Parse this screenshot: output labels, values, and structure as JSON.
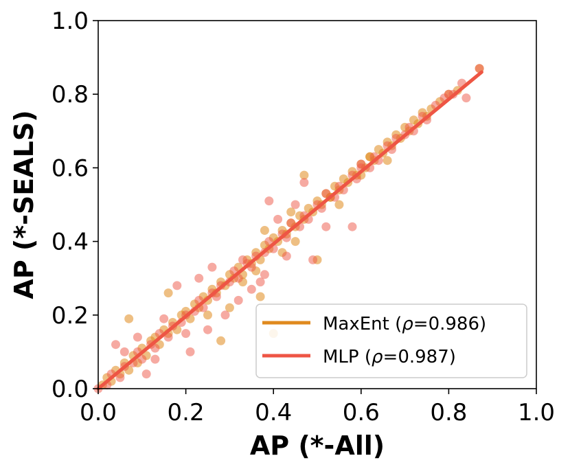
{
  "chart_data": {
    "type": "scatter",
    "xlabel": "AP (*-All)",
    "ylabel": "AP (*-SEALS)",
    "xlim": [
      0.0,
      1.0
    ],
    "ylim": [
      0.0,
      1.0
    ],
    "xticks": [
      "0.0",
      "0.2",
      "0.4",
      "0.6",
      "0.8",
      "1.0"
    ],
    "yticks": [
      "0.0",
      "0.2",
      "0.4",
      "0.6",
      "0.8",
      "1.0"
    ],
    "grid": false,
    "legend_position": "lower-right",
    "series": [
      {
        "name": "MaxEnt",
        "name_prefix": "MaxEnt (",
        "rho_symbol": "ρ",
        "rho_text": "=0.986)",
        "color": "#e08a1e",
        "fit_line": [
          [
            0.0,
            0.0
          ],
          [
            0.875,
            0.86
          ]
        ],
        "points": [
          [
            0.01,
            0.01
          ],
          [
            0.02,
            0.03
          ],
          [
            0.03,
            0.02
          ],
          [
            0.04,
            0.05
          ],
          [
            0.05,
            0.04
          ],
          [
            0.06,
            0.07
          ],
          [
            0.07,
            0.05
          ],
          [
            0.08,
            0.09
          ],
          [
            0.09,
            0.07
          ],
          [
            0.1,
            0.11
          ],
          [
            0.11,
            0.09
          ],
          [
            0.12,
            0.13
          ],
          [
            0.13,
            0.14
          ],
          [
            0.14,
            0.12
          ],
          [
            0.15,
            0.16
          ],
          [
            0.16,
            0.15
          ],
          [
            0.17,
            0.18
          ],
          [
            0.18,
            0.16
          ],
          [
            0.19,
            0.2
          ],
          [
            0.2,
            0.21
          ],
          [
            0.21,
            0.19
          ],
          [
            0.22,
            0.23
          ],
          [
            0.23,
            0.22
          ],
          [
            0.24,
            0.25
          ],
          [
            0.25,
            0.24
          ],
          [
            0.26,
            0.27
          ],
          [
            0.27,
            0.26
          ],
          [
            0.28,
            0.29
          ],
          [
            0.29,
            0.28
          ],
          [
            0.3,
            0.31
          ],
          [
            0.31,
            0.3
          ],
          [
            0.32,
            0.33
          ],
          [
            0.33,
            0.31
          ],
          [
            0.34,
            0.35
          ],
          [
            0.35,
            0.34
          ],
          [
            0.36,
            0.37
          ],
          [
            0.37,
            0.35
          ],
          [
            0.38,
            0.39
          ],
          [
            0.39,
            0.38
          ],
          [
            0.4,
            0.41
          ],
          [
            0.41,
            0.4
          ],
          [
            0.42,
            0.43
          ],
          [
            0.43,
            0.42
          ],
          [
            0.44,
            0.45
          ],
          [
            0.45,
            0.44
          ],
          [
            0.46,
            0.47
          ],
          [
            0.47,
            0.46
          ],
          [
            0.48,
            0.49
          ],
          [
            0.49,
            0.48
          ],
          [
            0.5,
            0.51
          ],
          [
            0.51,
            0.5
          ],
          [
            0.52,
            0.53
          ],
          [
            0.53,
            0.52
          ],
          [
            0.54,
            0.55
          ],
          [
            0.55,
            0.54
          ],
          [
            0.56,
            0.57
          ],
          [
            0.57,
            0.56
          ],
          [
            0.58,
            0.59
          ],
          [
            0.59,
            0.58
          ],
          [
            0.6,
            0.61
          ],
          [
            0.61,
            0.6
          ],
          [
            0.62,
            0.63
          ],
          [
            0.63,
            0.62
          ],
          [
            0.64,
            0.65
          ],
          [
            0.65,
            0.64
          ],
          [
            0.66,
            0.67
          ],
          [
            0.67,
            0.66
          ],
          [
            0.68,
            0.69
          ],
          [
            0.69,
            0.68
          ],
          [
            0.7,
            0.71
          ],
          [
            0.71,
            0.7
          ],
          [
            0.72,
            0.73
          ],
          [
            0.73,
            0.72
          ],
          [
            0.74,
            0.75
          ],
          [
            0.75,
            0.74
          ],
          [
            0.76,
            0.76
          ],
          [
            0.78,
            0.78
          ],
          [
            0.8,
            0.8
          ],
          [
            0.82,
            0.81
          ],
          [
            0.87,
            0.87
          ],
          [
            0.07,
            0.19
          ],
          [
            0.16,
            0.26
          ],
          [
            0.47,
            0.58
          ],
          [
            0.4,
            0.15
          ],
          [
            0.5,
            0.35
          ],
          [
            0.28,
            0.13
          ],
          [
            0.37,
            0.25
          ],
          [
            0.44,
            0.48
          ],
          [
            0.53,
            0.52
          ],
          [
            0.62,
            0.63
          ],
          [
            0.36,
            0.32
          ],
          [
            0.42,
            0.37
          ],
          [
            0.25,
            0.2
          ],
          [
            0.33,
            0.29
          ],
          [
            0.45,
            0.4
          ],
          [
            0.55,
            0.5
          ],
          [
            0.38,
            0.43
          ],
          [
            0.3,
            0.22
          ],
          [
            0.6,
            0.58
          ],
          [
            0.66,
            0.62
          ]
        ]
      },
      {
        "name": "MLP",
        "name_prefix": "MLP (",
        "rho_symbol": "ρ",
        "rho_text": "=0.987)",
        "color": "#ee5545",
        "fit_line": [
          [
            0.0,
            0.0
          ],
          [
            0.875,
            0.86
          ]
        ],
        "points": [
          [
            0.0,
            0.0
          ],
          [
            0.02,
            0.01
          ],
          [
            0.03,
            0.04
          ],
          [
            0.05,
            0.03
          ],
          [
            0.06,
            0.06
          ],
          [
            0.08,
            0.07
          ],
          [
            0.09,
            0.1
          ],
          [
            0.1,
            0.08
          ],
          [
            0.12,
            0.12
          ],
          [
            0.13,
            0.11
          ],
          [
            0.14,
            0.15
          ],
          [
            0.16,
            0.14
          ],
          [
            0.17,
            0.17
          ],
          [
            0.19,
            0.18
          ],
          [
            0.2,
            0.2
          ],
          [
            0.22,
            0.21
          ],
          [
            0.23,
            0.24
          ],
          [
            0.24,
            0.22
          ],
          [
            0.26,
            0.26
          ],
          [
            0.27,
            0.25
          ],
          [
            0.28,
            0.28
          ],
          [
            0.3,
            0.29
          ],
          [
            0.31,
            0.32
          ],
          [
            0.32,
            0.3
          ],
          [
            0.34,
            0.34
          ],
          [
            0.35,
            0.33
          ],
          [
            0.36,
            0.36
          ],
          [
            0.38,
            0.37
          ],
          [
            0.39,
            0.4
          ],
          [
            0.4,
            0.38
          ],
          [
            0.42,
            0.42
          ],
          [
            0.43,
            0.41
          ],
          [
            0.44,
            0.45
          ],
          [
            0.46,
            0.44
          ],
          [
            0.47,
            0.47
          ],
          [
            0.48,
            0.46
          ],
          [
            0.5,
            0.5
          ],
          [
            0.51,
            0.49
          ],
          [
            0.52,
            0.53
          ],
          [
            0.54,
            0.52
          ],
          [
            0.55,
            0.55
          ],
          [
            0.56,
            0.54
          ],
          [
            0.58,
            0.58
          ],
          [
            0.59,
            0.57
          ],
          [
            0.6,
            0.61
          ],
          [
            0.62,
            0.6
          ],
          [
            0.63,
            0.63
          ],
          [
            0.64,
            0.62
          ],
          [
            0.66,
            0.66
          ],
          [
            0.67,
            0.65
          ],
          [
            0.68,
            0.68
          ],
          [
            0.7,
            0.69
          ],
          [
            0.71,
            0.71
          ],
          [
            0.72,
            0.7
          ],
          [
            0.74,
            0.74
          ],
          [
            0.75,
            0.73
          ],
          [
            0.77,
            0.77
          ],
          [
            0.79,
            0.79
          ],
          [
            0.8,
            0.8
          ],
          [
            0.81,
            0.8
          ],
          [
            0.83,
            0.83
          ],
          [
            0.84,
            0.79
          ],
          [
            0.87,
            0.87
          ],
          [
            0.04,
            0.12
          ],
          [
            0.06,
            0.1
          ],
          [
            0.09,
            0.14
          ],
          [
            0.11,
            0.04
          ],
          [
            0.15,
            0.19
          ],
          [
            0.18,
            0.28
          ],
          [
            0.21,
            0.1
          ],
          [
            0.23,
            0.3
          ],
          [
            0.26,
            0.33
          ],
          [
            0.29,
            0.2
          ],
          [
            0.32,
            0.24
          ],
          [
            0.35,
            0.27
          ],
          [
            0.38,
            0.31
          ],
          [
            0.41,
            0.46
          ],
          [
            0.43,
            0.36
          ],
          [
            0.45,
            0.5
          ],
          [
            0.49,
            0.35
          ],
          [
            0.52,
            0.44
          ],
          [
            0.58,
            0.44
          ],
          [
            0.39,
            0.51
          ],
          [
            0.47,
            0.56
          ],
          [
            0.33,
            0.35
          ],
          [
            0.37,
            0.29
          ],
          [
            0.25,
            0.16
          ],
          [
            0.2,
            0.15
          ],
          [
            0.13,
            0.08
          ],
          [
            0.6,
            0.6
          ]
        ]
      }
    ]
  }
}
